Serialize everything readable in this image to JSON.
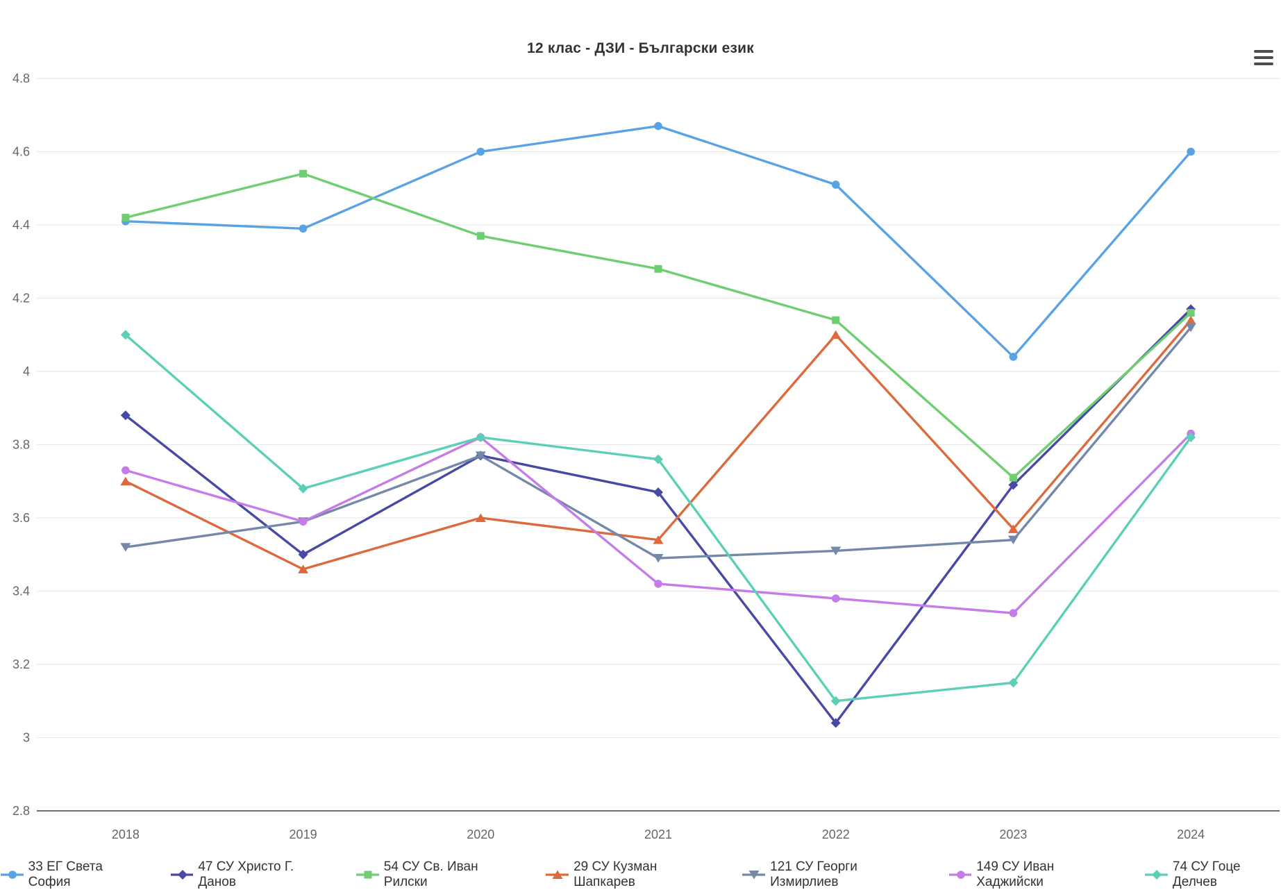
{
  "title": "12 клас - ДЗИ - Български език",
  "menu": {
    "icon": "hamburger-menu-icon"
  },
  "chart_data": {
    "type": "line",
    "title": "12 клас - ДЗИ - Български език",
    "xlabel": "",
    "ylabel": "",
    "categories": [
      "2018",
      "2019",
      "2020",
      "2021",
      "2022",
      "2023",
      "2024"
    ],
    "ylim": [
      2.8,
      4.8
    ],
    "ytick_step": 0.2,
    "ytick_labels": [
      "2.8",
      "3",
      "3.2",
      "3.4",
      "3.6",
      "3.8",
      "4",
      "4.2",
      "4.4",
      "4.6",
      "4.8"
    ],
    "grid": true,
    "legend_position": "bottom",
    "series": [
      {
        "name": "33 ЕГ Света София",
        "color": "#59a2e4",
        "marker": "circle",
        "values": [
          4.41,
          4.39,
          4.6,
          4.67,
          4.51,
          4.04,
          4.6
        ]
      },
      {
        "name": "47 СУ Христо Г. Данов",
        "color": "#4749a5",
        "marker": "diamond",
        "values": [
          3.88,
          3.5,
          3.77,
          3.67,
          3.04,
          3.69,
          4.17
        ]
      },
      {
        "name": "54 СУ Св. Иван Рилски",
        "color": "#6ece71",
        "marker": "square",
        "values": [
          4.42,
          4.54,
          4.37,
          4.28,
          4.14,
          3.71,
          4.16
        ]
      },
      {
        "name": "29 СУ Кузман Шапкарев",
        "color": "#dc6a3d",
        "marker": "triangle",
        "values": [
          3.7,
          3.46,
          3.6,
          3.54,
          4.1,
          3.57,
          4.14
        ]
      },
      {
        "name": "121 СУ Георги Измирлиев",
        "color": "#7488aa",
        "marker": "triangle-down",
        "values": [
          3.52,
          3.59,
          3.77,
          3.49,
          3.51,
          3.54,
          4.12
        ]
      },
      {
        "name": "149 СУ Иван Хаджийски",
        "color": "#c57ce8",
        "marker": "circle",
        "values": [
          3.73,
          3.59,
          3.82,
          3.42,
          3.38,
          3.34,
          3.83
        ]
      },
      {
        "name": "74 СУ Гоце Делчев",
        "color": "#5ccfb7",
        "marker": "diamond",
        "values": [
          4.1,
          3.68,
          3.82,
          3.76,
          3.1,
          3.15,
          3.82
        ]
      }
    ]
  }
}
